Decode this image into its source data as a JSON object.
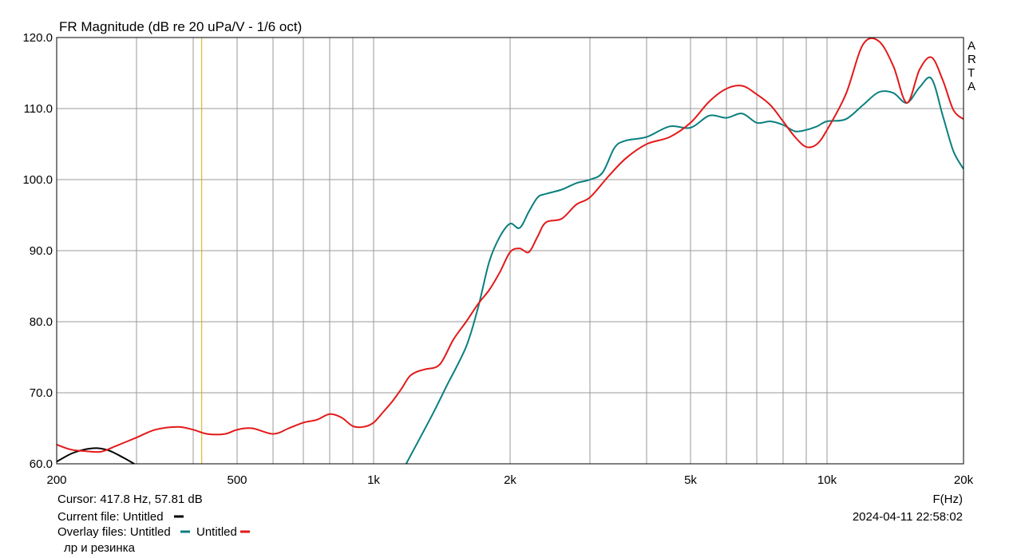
{
  "title": "FR Magnitude (dB re 20 uPa/V - 1/6 oct)",
  "brand": [
    "A",
    "R",
    "T",
    "A"
  ],
  "xaxis_label": "F(Hz)",
  "cursor_text": "Cursor: 417.8 Hz, 57.81 dB",
  "current_file_text": "Current file: Untitled",
  "overlay_prefix": "Overlay files: Untitled",
  "overlay_second": "Untitled",
  "note_text": "лр и резинка",
  "timestamp": "2024-04-11   22:58:02",
  "colors": {
    "grid": "#9a9a9a",
    "cursor": "#d4b000",
    "current": "#000000",
    "overlay1": "#0a7f7f",
    "overlay2": "#e31919"
  },
  "chart_data": {
    "type": "line",
    "title": "FR Magnitude (dB re 20 uPa/V - 1/6 oct)",
    "xlabel": "F(Hz)",
    "xscale": "log",
    "xlim": [
      200,
      20000
    ],
    "ylim": [
      60,
      120
    ],
    "grid": true,
    "x_tick_labels": [
      {
        "value": 200,
        "label": "200"
      },
      {
        "value": 500,
        "label": "500"
      },
      {
        "value": 1000,
        "label": "1k"
      },
      {
        "value": 2000,
        "label": "2k"
      },
      {
        "value": 5000,
        "label": "5k"
      },
      {
        "value": 10000,
        "label": "10k"
      },
      {
        "value": 20000,
        "label": "20k"
      }
    ],
    "y_tick_labels": [
      {
        "value": 120,
        "label": "120.0"
      },
      {
        "value": 110,
        "label": "110.0"
      },
      {
        "value": 100,
        "label": "100.0"
      },
      {
        "value": 90,
        "label": "90.0"
      },
      {
        "value": 80,
        "label": "80.0"
      },
      {
        "value": 70,
        "label": "70.0"
      },
      {
        "value": 60,
        "label": "60.0"
      }
    ],
    "cursor": {
      "x": 417.8,
      "y": 57.81
    },
    "series": [
      {
        "name": "Current file: Untitled",
        "color": "#000000",
        "x": [
          200,
          215,
          230,
          245,
          260,
          280,
          300
        ],
        "y": [
          60.3,
          61.4,
          62.0,
          62.2,
          61.9,
          60.9,
          59.8
        ]
      },
      {
        "name": "Untitled",
        "color": "#0a7f7f",
        "x": [
          1180,
          1250,
          1350,
          1450,
          1600,
          1700,
          1800,
          1900,
          2000,
          2100,
          2200,
          2300,
          2400,
          2600,
          2800,
          3000,
          3200,
          3400,
          3600,
          4000,
          4500,
          5000,
          5500,
          6000,
          6500,
          7000,
          7500,
          8000,
          8500,
          9000,
          9500,
          10000,
          11000,
          12000,
          13000,
          14000,
          15000,
          16000,
          17000,
          18000,
          19000,
          20000
        ],
        "y": [
          60.0,
          63.0,
          67.0,
          71.0,
          76.5,
          82.0,
          88.5,
          92.0,
          93.8,
          93.2,
          95.5,
          97.5,
          98.0,
          98.6,
          99.5,
          100.0,
          101.0,
          104.5,
          105.5,
          106.0,
          107.5,
          107.3,
          109.0,
          108.7,
          109.3,
          108.0,
          108.2,
          107.7,
          106.8,
          107.0,
          107.5,
          108.2,
          108.5,
          110.5,
          112.3,
          112.2,
          110.8,
          113.0,
          114.2,
          109.0,
          104.0,
          101.5
        ]
      },
      {
        "name": "Untitled",
        "color": "#e31919",
        "x": [
          200,
          215,
          230,
          250,
          270,
          300,
          330,
          370,
          400,
          430,
          470,
          500,
          540,
          600,
          650,
          700,
          750,
          800,
          850,
          900,
          950,
          1000,
          1050,
          1100,
          1150,
          1200,
          1250,
          1300,
          1400,
          1500,
          1600,
          1700,
          1800,
          1900,
          2000,
          2100,
          2200,
          2300,
          2400,
          2600,
          2800,
          3000,
          3300,
          3600,
          4000,
          4500,
          5000,
          5500,
          6000,
          6500,
          7000,
          7500,
          8000,
          8500,
          9000,
          9500,
          10000,
          11000,
          12000,
          13000,
          14000,
          15000,
          16000,
          17000,
          18000,
          19000,
          20000
        ],
        "y": [
          62.7,
          62.0,
          61.8,
          61.7,
          62.5,
          63.7,
          64.8,
          65.2,
          64.8,
          64.2,
          64.2,
          64.8,
          65.0,
          64.2,
          65.0,
          65.8,
          66.2,
          67.0,
          66.5,
          65.3,
          65.2,
          65.8,
          67.3,
          68.8,
          70.5,
          72.3,
          73.0,
          73.3,
          74.0,
          77.5,
          80.0,
          82.5,
          84.5,
          87.0,
          89.8,
          90.3,
          89.8,
          92.0,
          94.0,
          94.5,
          96.5,
          97.5,
          100.5,
          103.0,
          105.0,
          106.0,
          108.0,
          111.0,
          112.8,
          113.2,
          112.0,
          110.5,
          108.2,
          106.0,
          104.6,
          105.0,
          107.0,
          112.0,
          119.0,
          119.5,
          116.0,
          110.8,
          115.5,
          117.2,
          114.0,
          109.8,
          108.5
        ]
      }
    ]
  }
}
